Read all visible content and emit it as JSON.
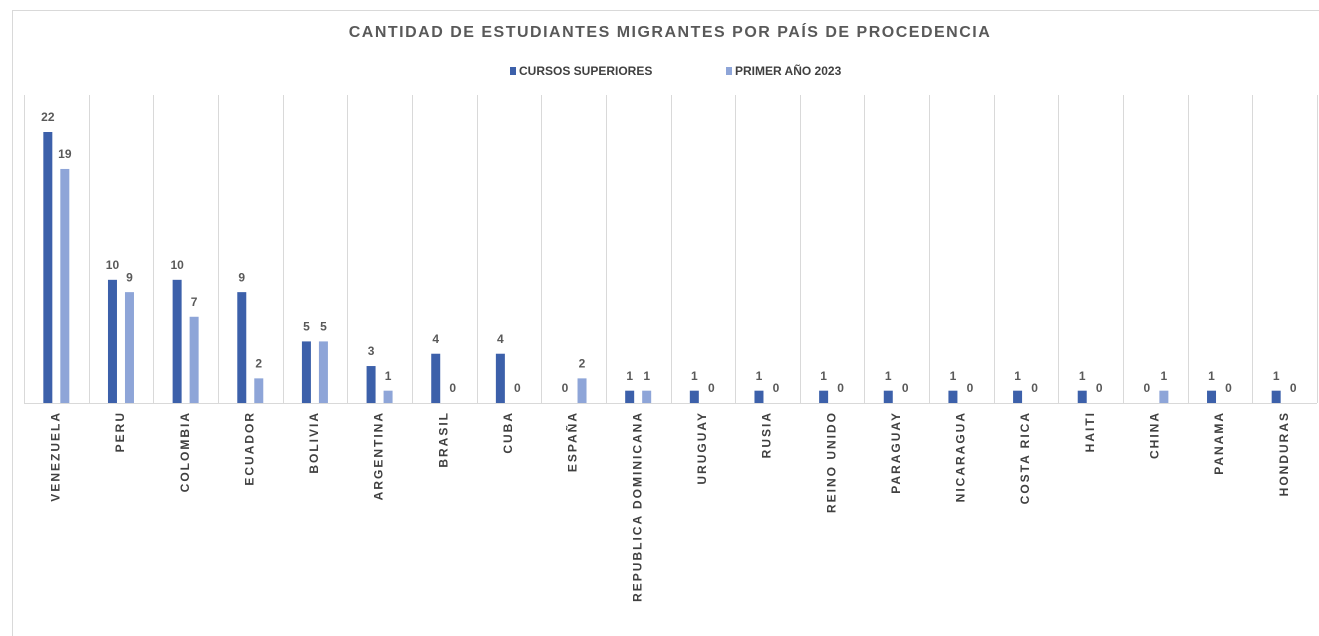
{
  "chart_data": {
    "type": "bar",
    "title": "CANTIDAD DE ESTUDIANTES MIGRANTES POR PAÍS DE PROCEDENCIA",
    "categories": [
      "VENEZUELA",
      "PERU",
      "COLOMBIA",
      "ECUADOR",
      "BOLIVIA",
      "ARGENTINA",
      "BRASIL",
      "CUBA",
      "ESPAÑA",
      "REPUBLICA DOMINICANA",
      "URUGUAY",
      "RUSIA",
      "REINO UNIDO",
      "PARAGUAY",
      "NICARAGUA",
      "COSTA RICA",
      "HAITI",
      "CHINA",
      "PANAMA",
      "HONDURAS"
    ],
    "series": [
      {
        "name": "CURSOS SUPERIORES",
        "color": "#3c60aa",
        "values": [
          22,
          10,
          10,
          9,
          5,
          3,
          4,
          4,
          0,
          1,
          1,
          1,
          1,
          1,
          1,
          1,
          1,
          0,
          1,
          1
        ]
      },
      {
        "name": "PRIMER AÑO 2023",
        "color": "#8ea5d8",
        "values": [
          19,
          9,
          7,
          2,
          5,
          1,
          0,
          0,
          2,
          1,
          0,
          0,
          0,
          0,
          0,
          0,
          0,
          1,
          0,
          0
        ]
      }
    ],
    "legend": "top",
    "grid": true
  }
}
